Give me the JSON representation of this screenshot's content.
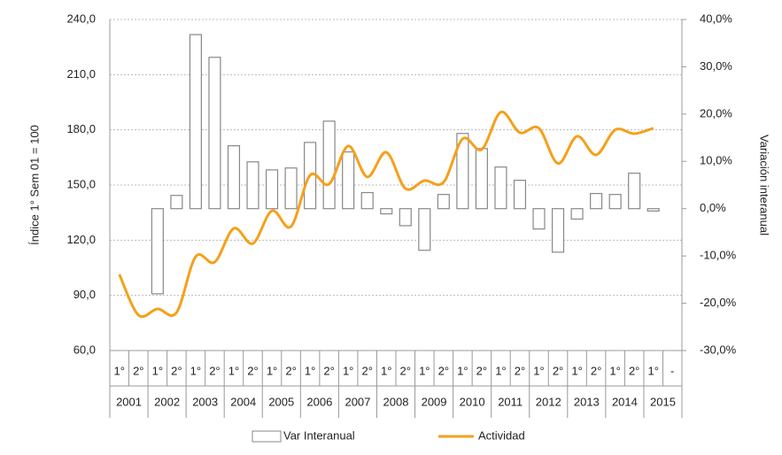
{
  "chart_data": {
    "type": "bar-line",
    "y_label": "Índice 1° Sem 01 = 100",
    "y2_label": "Variación interanual",
    "categories": [
      "1°",
      "2°",
      "1°",
      "2°",
      "1°",
      "2°",
      "1°",
      "2°",
      "1°",
      "2°",
      "1°",
      "2°",
      "1°",
      "2°",
      "1°",
      "2°",
      "1°",
      "2°",
      "1°",
      "2°",
      "1°",
      "2°",
      "1°",
      "2°",
      "1°",
      "2°",
      "1°",
      "2°",
      "1°",
      "-"
    ],
    "years": [
      "2001",
      "2002",
      "2003",
      "2004",
      "2005",
      "2006",
      "2007",
      "2008",
      "2009",
      "2010",
      "2011",
      "2012",
      "2013",
      "2014",
      "2015"
    ],
    "ylim": [
      60,
      240
    ],
    "yticks": [
      {
        "value": 60,
        "label": "60,0"
      },
      {
        "value": 90,
        "label": "90,0"
      },
      {
        "value": 120,
        "label": "120,0"
      },
      {
        "value": 150,
        "label": "150,0"
      },
      {
        "value": 180,
        "label": "180,0"
      },
      {
        "value": 210,
        "label": "210,0"
      },
      {
        "value": 240,
        "label": "240,0"
      }
    ],
    "y2lim": [
      -30,
      40
    ],
    "y2ticks": [
      {
        "value": -30,
        "label": "-30,0%"
      },
      {
        "value": -20,
        "label": "-20,0%"
      },
      {
        "value": -10,
        "label": "-10,0%"
      },
      {
        "value": 0,
        "label": "0,0%"
      },
      {
        "value": 10,
        "label": "10,0%"
      },
      {
        "value": 20,
        "label": "20,0%"
      },
      {
        "value": 30,
        "label": "30,0%"
      },
      {
        "value": 40,
        "label": "40,0%"
      }
    ],
    "grid": true,
    "series": [
      {
        "name": "Var Interanual",
        "type": "bar",
        "axis": "y2",
        "color": "#ffffff",
        "edge_color": "#888888",
        "values": [
          null,
          null,
          -18,
          2.8,
          36.8,
          32,
          13.3,
          9.9,
          8.2,
          8.6,
          14,
          18.5,
          12,
          3.4,
          -1.1,
          -3.6,
          -8.8,
          3,
          15.9,
          12.7,
          8.8,
          6,
          -4.3,
          -9.2,
          -2.2,
          3.2,
          3,
          7.5,
          -0.5,
          null
        ]
      },
      {
        "name": "Actividad",
        "type": "line",
        "axis": "y",
        "color": "#f5a01a",
        "values": [
          101.4,
          79.3,
          82.6,
          80.7,
          111,
          108.1,
          126.4,
          118.2,
          136,
          127.4,
          155.3,
          150.5,
          171.2,
          154.4,
          167.8,
          148.1,
          152.4,
          151.5,
          175.1,
          169.3,
          189.6,
          178.5,
          180.9,
          161.7,
          176.5,
          166.4,
          180,
          177.9,
          180.9,
          null
        ]
      }
    ]
  }
}
